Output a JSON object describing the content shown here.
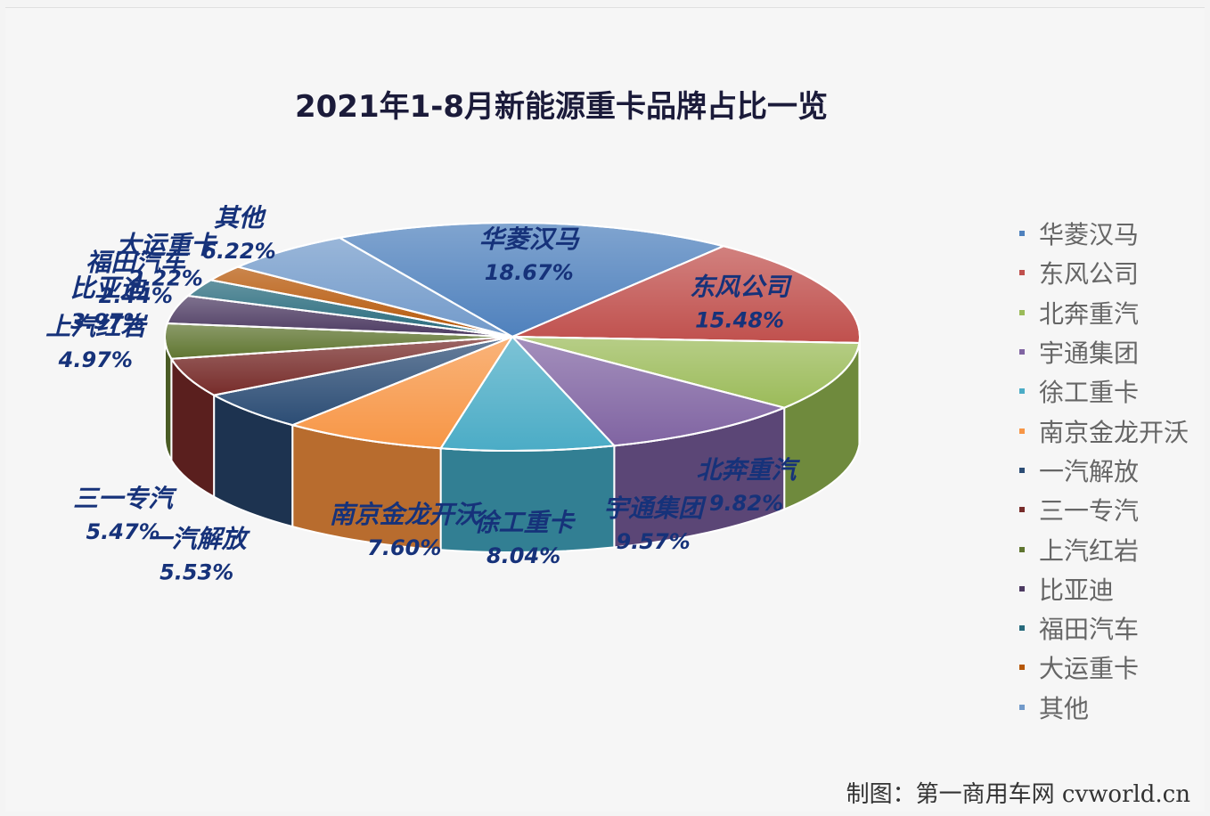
{
  "chart_data": {
    "type": "pie",
    "title": "2021年1-8月新能源重卡品牌占比一览",
    "slices": [
      {
        "name": "华菱汉马",
        "value": 18.67,
        "label": "18.67%",
        "color": "#4f81bd",
        "side": "#3d6496"
      },
      {
        "name": "东风公司",
        "value": 15.48,
        "label": "15.48%",
        "color": "#c0504d",
        "side": "#8c3a38"
      },
      {
        "name": "北奔重汽",
        "value": 9.82,
        "label": "9.82%",
        "color": "#9bbb59",
        "side": "#6f8a3d"
      },
      {
        "name": "宇通集团",
        "value": 9.57,
        "label": "9.57%",
        "color": "#8064a2",
        "side": "#5b4676"
      },
      {
        "name": "徐工重卡",
        "value": 8.04,
        "label": "8.04%",
        "color": "#4bacc6",
        "side": "#327f93"
      },
      {
        "name": "南京金龙开沃",
        "value": 7.6,
        "label": "7.60%",
        "color": "#f79646",
        "side": "#b86c2e"
      },
      {
        "name": "一汽解放",
        "value": 5.53,
        "label": "5.53%",
        "color": "#2c4d75",
        "side": "#1d3350"
      },
      {
        "name": "三一专汽",
        "value": 5.47,
        "label": "5.47%",
        "color": "#772c2a",
        "side": "#5a1f1e"
      },
      {
        "name": "上汽红岩",
        "value": 4.97,
        "label": "4.97%",
        "color": "#5f7530",
        "side": "#4a5c25"
      },
      {
        "name": "比亚迪",
        "value": 3.97,
        "label": "3.97%",
        "color": "#4d3b62",
        "side": "#3a2c4b"
      },
      {
        "name": "福田汽车",
        "value": 2.44,
        "label": "2.44%",
        "color": "#276a7c",
        "side": "#1d5261"
      },
      {
        "name": "大运重卡",
        "value": 2.22,
        "label": "2.22%",
        "color": "#b65708",
        "side": "#8c4306"
      },
      {
        "name": "其他",
        "value": 6.22,
        "label": "6.22%",
        "color": "#729aca",
        "side": "#5c7eaa"
      }
    ],
    "legend_position": "right"
  },
  "credit": "制图：第一商用车网 cvworld.cn"
}
